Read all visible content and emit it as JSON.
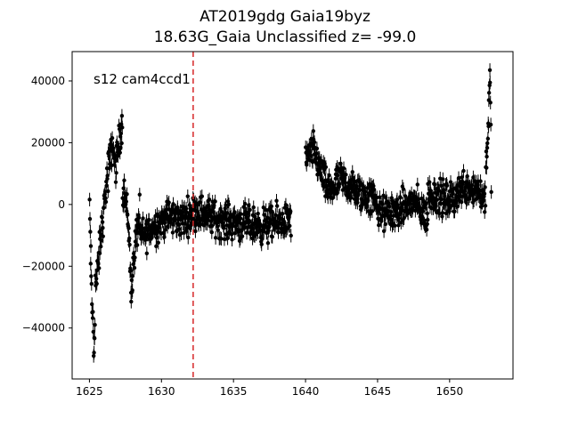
{
  "chart_data": {
    "type": "scatter",
    "title": "AT2019gdg  Gaia19byz",
    "subtitle": "18.63G_Gaia Unclassified z= -99.0",
    "annotation": "s12 cam4ccd1",
    "xlabel": "",
    "ylabel": "",
    "xlim": [
      1623.8,
      1654.4
    ],
    "ylim": [
      -56500,
      49500
    ],
    "x_ticks": [
      1625,
      1630,
      1635,
      1640,
      1645,
      1650
    ],
    "y_ticks": [
      -40000,
      -20000,
      0,
      20000,
      40000
    ],
    "x_tick_labels": [
      "1625",
      "1630",
      "1635",
      "1640",
      "1645",
      "1650"
    ],
    "y_tick_labels": [
      "−40000",
      "−20000",
      "0",
      "20000",
      "40000"
    ],
    "vertical_line": {
      "x": 1632.2,
      "color": "#d62728",
      "style": "dashed"
    },
    "marker_color": "#000000",
    "error_bar": 2200,
    "segments": [
      {
        "x_start": 1625.0,
        "x_end": 1625.4,
        "points": [
          [
            1625.0,
            2000
          ],
          [
            1625.15,
            -30000
          ],
          [
            1625.25,
            -38000
          ],
          [
            1625.3,
            -48500
          ],
          [
            1625.4,
            -33000
          ]
        ]
      },
      {
        "x_start": 1625.4,
        "x_end": 1626.3,
        "points": [
          [
            1625.5,
            -25000
          ],
          [
            1625.8,
            -10000
          ],
          [
            1626.0,
            -2000
          ],
          [
            1626.2,
            8000
          ]
        ]
      },
      {
        "x_start": 1626.3,
        "x_end": 1627.3,
        "points": [
          [
            1626.4,
            13000
          ],
          [
            1626.6,
            20000
          ],
          [
            1626.8,
            12000
          ],
          [
            1627.0,
            18000
          ],
          [
            1627.2,
            25000
          ]
        ]
      },
      {
        "x_start": 1627.3,
        "x_end": 1628.5,
        "points": [
          [
            1627.4,
            5000
          ],
          [
            1627.7,
            -5000
          ],
          [
            1627.9,
            -28000
          ],
          [
            1628.2,
            -12000
          ],
          [
            1628.5,
            -3000
          ]
        ]
      },
      {
        "x_start": 1628.5,
        "x_end": 1632.2,
        "points": [
          [
            1628.8,
            -10000
          ],
          [
            1629.5,
            -7000
          ],
          [
            1630.5,
            -4000
          ],
          [
            1631.5,
            -5000
          ],
          [
            1632.0,
            -3000
          ]
        ]
      },
      {
        "x_start": 1632.2,
        "x_end": 1639.0,
        "points": [
          [
            1632.5,
            -2000
          ],
          [
            1634.0,
            -5000
          ],
          [
            1635.5,
            -6000
          ],
          [
            1637.0,
            -7000
          ],
          [
            1638.8,
            -5000
          ]
        ]
      },
      {
        "x_start": 1640.0,
        "x_end": 1641.5,
        "points": [
          [
            1640.1,
            14000
          ],
          [
            1640.5,
            18000
          ],
          [
            1641.0,
            12000
          ],
          [
            1641.4,
            6000
          ]
        ]
      },
      {
        "x_start": 1641.5,
        "x_end": 1645.0,
        "points": [
          [
            1641.8,
            5000
          ],
          [
            1642.5,
            8000
          ],
          [
            1643.5,
            4000
          ],
          [
            1644.5,
            2000
          ]
        ]
      },
      {
        "x_start": 1645.0,
        "x_end": 1648.5,
        "points": [
          [
            1645.5,
            -3000
          ],
          [
            1646.5,
            -2000
          ],
          [
            1647.5,
            1000
          ],
          [
            1648.4,
            -4000
          ]
        ]
      },
      {
        "x_start": 1648.5,
        "x_end": 1652.5,
        "points": [
          [
            1649.0,
            3000
          ],
          [
            1650.0,
            1000
          ],
          [
            1651.0,
            6000
          ],
          [
            1652.0,
            5000
          ],
          [
            1652.4,
            2000
          ]
        ]
      },
      {
        "x_start": 1652.5,
        "x_end": 1652.9,
        "points": [
          [
            1652.55,
            15000
          ],
          [
            1652.7,
            28000
          ],
          [
            1652.8,
            41000
          ],
          [
            1652.9,
            8000
          ]
        ]
      }
    ],
    "spread": 5500
  }
}
